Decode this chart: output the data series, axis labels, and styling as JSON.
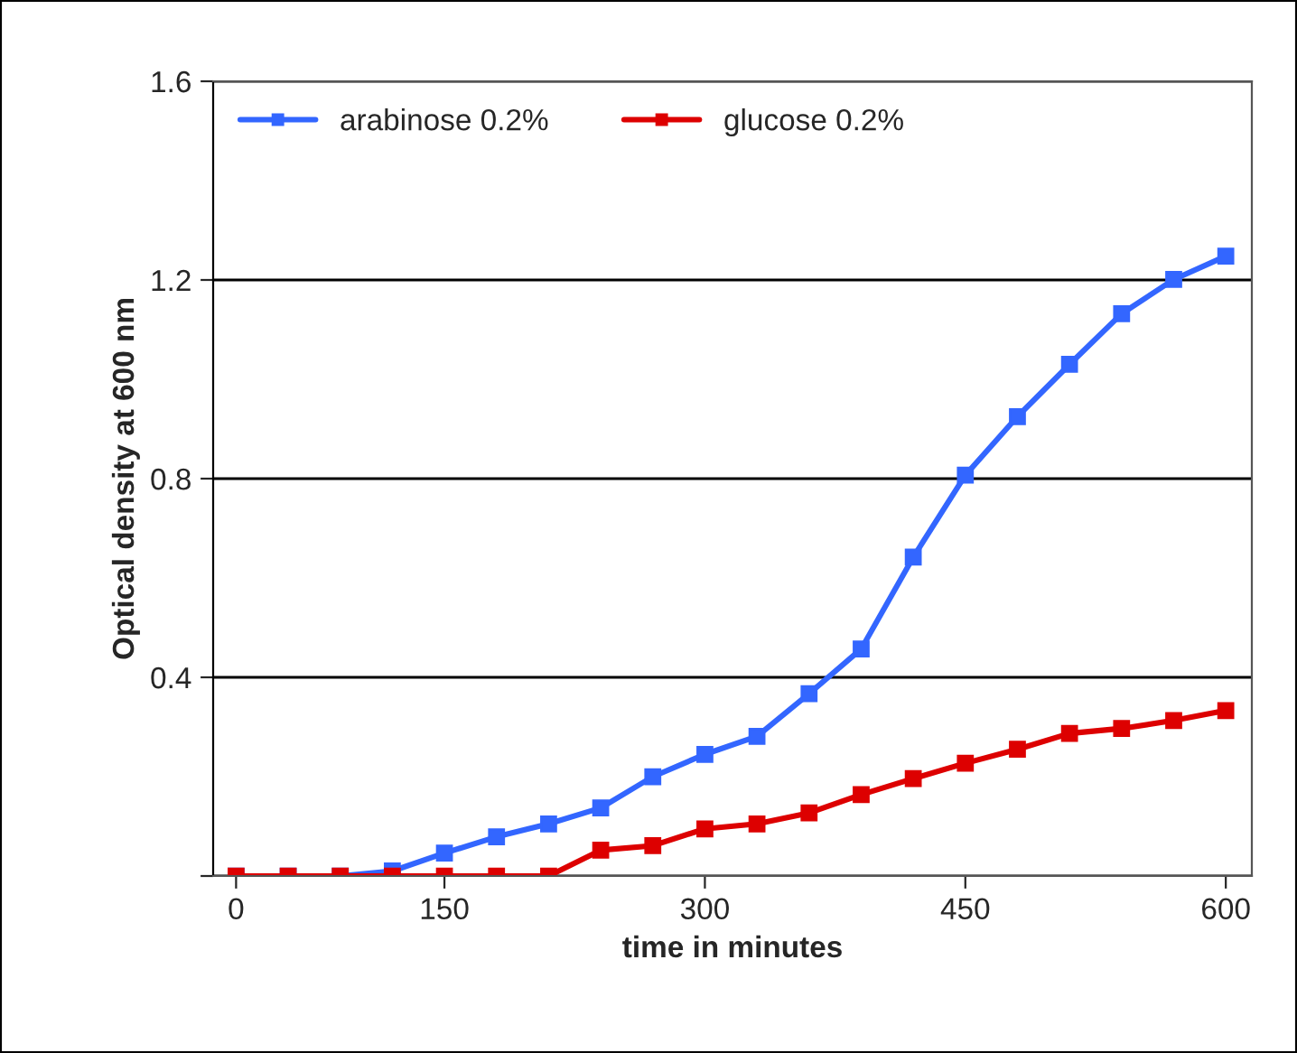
{
  "chart_data": {
    "type": "line",
    "xlabel": "time in minutes",
    "ylabel": "Optical density at 600 nm",
    "categories": [
      "0",
      null,
      null,
      null,
      "150",
      null,
      null,
      null,
      null,
      "300",
      null,
      null,
      null,
      null,
      "450",
      null,
      null,
      null,
      null,
      "600"
    ],
    "series": [
      {
        "name": "arabinose 0.2%",
        "color": "#3366ff",
        "values": [
          0,
          0,
          0,
          0.01,
          0.046,
          0.079,
          0.105,
          0.137,
          0.2,
          0.245,
          0.281,
          0.367,
          0.457,
          0.642,
          0.807,
          0.925,
          1.03,
          1.132,
          1.201,
          1.248
        ]
      },
      {
        "name": "glucose 0.2%",
        "color": "#dd0000",
        "values": [
          0,
          0,
          0,
          0,
          0,
          0,
          0,
          0.052,
          0.061,
          0.095,
          0.105,
          0.127,
          0.164,
          0.196,
          0.227,
          0.255,
          0.287,
          0.297,
          0.313,
          0.333
        ]
      }
    ],
    "ylim": [
      0,
      1.6
    ],
    "yticks": [
      {
        "value": 0,
        "label": null
      },
      0.4,
      0.8,
      1.2,
      1.6
    ],
    "grid": "y",
    "legend": "top left",
    "marker": "square",
    "line_style": "solid"
  }
}
